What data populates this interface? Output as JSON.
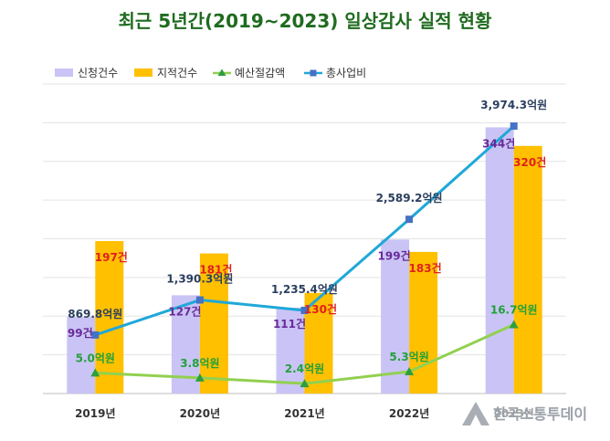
{
  "chart_data": {
    "type": "bar",
    "title": "최근 5년간(2019~2023) 일상감사 실적 현황",
    "categories": [
      "2019년",
      "2020년",
      "2021년",
      "2022년",
      "2023년"
    ],
    "grid": true,
    "legend_position": "top-left",
    "series": [
      {
        "name": "신청건수",
        "type": "bar",
        "values": [
          99,
          127,
          111,
          199,
          344
        ],
        "labels": [
          "99건",
          "127건",
          "111건",
          "199건",
          "344건"
        ],
        "color": "#c9c4f5"
      },
      {
        "name": "지적건수",
        "type": "bar",
        "values": [
          197,
          181,
          130,
          183,
          320
        ],
        "labels": [
          "197건",
          "181건",
          "130건",
          "183건",
          "320건"
        ],
        "color": "#ffc000"
      },
      {
        "name": "예산절감액",
        "type": "line",
        "values": [
          5.0,
          3.8,
          2.4,
          5.3,
          16.7
        ],
        "labels": [
          "5.0억원",
          "3.8억원",
          "2.4억원",
          "5.3억원",
          "16.7억원"
        ],
        "color": "#92d050",
        "marker_color": "#2e9e3e"
      },
      {
        "name": "총사업비",
        "type": "line",
        "values": [
          869.8,
          1390.3,
          1235.4,
          2589.2,
          3974.3
        ],
        "labels": [
          "869.8억원",
          "1,390.3억원",
          "1,235.4억원",
          "2,589.2억원",
          "3,974.3억원"
        ],
        "color": "#1fa8d8",
        "marker_color": "#4472c4"
      }
    ]
  },
  "watermark": {
    "text": "한국소통투데이"
  }
}
